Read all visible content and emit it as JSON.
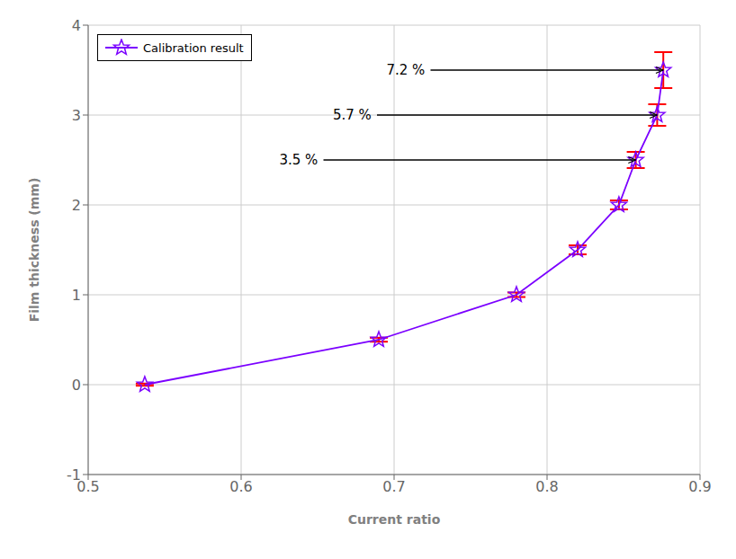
{
  "chart_data": {
    "type": "line",
    "xlabel": "Current ratio",
    "ylabel": "Film thickness (mm)",
    "x": [
      0.537,
      0.69,
      0.78,
      0.82,
      0.847,
      0.858,
      0.872,
      0.876
    ],
    "series": [
      {
        "name": "Calibration result",
        "color": "#7B00FF",
        "marker": "star",
        "line_style": "solid",
        "values": [
          0.0,
          0.5,
          1.0,
          1.5,
          2.0,
          2.5,
          3.0,
          3.5
        ],
        "error_bars": {
          "values": [
            0.012,
            0.022,
            0.025,
            0.05,
            0.05,
            0.09,
            0.12,
            0.2
          ],
          "color": "#FF0000"
        }
      }
    ],
    "xlim": [
      0.5,
      0.9
    ],
    "ylim": [
      -1,
      4
    ],
    "xticks": [
      0.5,
      0.6,
      0.7,
      0.8,
      0.9
    ],
    "yticks": [
      -1,
      0,
      1,
      2,
      3,
      4
    ],
    "grid": true,
    "legend": "upper left",
    "annotations": [
      {
        "text": "7.2 %",
        "xy": [
          0.876,
          3.5
        ],
        "xytext": [
          0.695,
          3.5
        ]
      },
      {
        "text": "5.7 %",
        "xy": [
          0.872,
          3.0
        ],
        "xytext": [
          0.66,
          3.0
        ]
      },
      {
        "text": "3.5 %",
        "xy": [
          0.858,
          2.5
        ],
        "xytext": [
          0.625,
          2.5
        ]
      }
    ]
  }
}
